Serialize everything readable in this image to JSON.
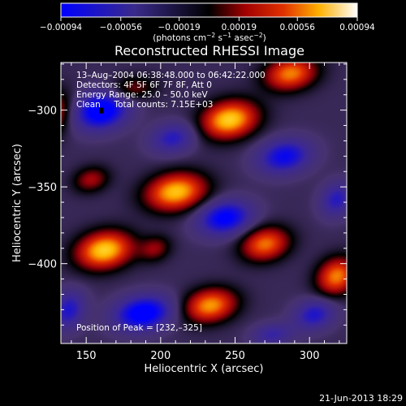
{
  "chart_data": {
    "type": "heatmap",
    "title": "Reconstructed RHESSI Image",
    "xlabel": "Heliocentric X (arcsec)",
    "ylabel": "Heliocentric Y (arcsec)",
    "xlim": [
      133,
      325
    ],
    "ylim": [
      -452,
      -269
    ],
    "x_ticks": [
      150,
      200,
      250,
      300
    ],
    "x_tick_labels": [
      "150",
      "200",
      "250",
      "300"
    ],
    "y_ticks": [
      -300,
      -350,
      -400
    ],
    "y_tick_labels": [
      "−300",
      "−350",
      "−400"
    ],
    "colorbar": {
      "range": [
        -0.00094,
        0.00094
      ],
      "ticks": [
        -0.00094,
        -0.00056,
        -0.00019,
        0.00019,
        0.00056,
        0.00094
      ],
      "tick_labels": [
        "−0.00094",
        "−0.00056",
        "−0.00019",
        "0.00019",
        "0.00056",
        "0.00094"
      ],
      "units_parts": [
        "(photons cm",
        "−2",
        " s",
        "−1",
        " asec",
        "−2",
        ")"
      ]
    },
    "annotations": [
      "13–Aug–2004 06:38:48.000 to 06:42:22.000",
      "Detectors: 4F 5F 6F 7F 8F, Att 0",
      "Energy Range: 25.0 – 50.0 keV",
      "Clean     Total counts: 7.15E+03"
    ],
    "peak_label": "Position of Peak = [232,–325]",
    "peak": {
      "x": 232,
      "y": -325
    },
    "colors": {
      "min": "#0000ff",
      "low": "#3a2a8a",
      "neutral": "#000000",
      "mid_high": "#d02000",
      "high": "#ffd700",
      "max": "#ffffff"
    },
    "blobs": [
      {
        "x": 246,
        "y": -306,
        "amp": 0.00094,
        "sx": 14,
        "sy": 10
      },
      {
        "x": 210,
        "y": -353,
        "amp": 0.0009,
        "sx": 15,
        "sy": 10
      },
      {
        "x": 162,
        "y": -391,
        "amp": 0.00094,
        "sx": 14,
        "sy": 10
      },
      {
        "x": 270,
        "y": -387,
        "amp": 0.00072,
        "sx": 12,
        "sy": 9
      },
      {
        "x": 233,
        "y": -427,
        "amp": 0.0008,
        "sx": 13,
        "sy": 9
      },
      {
        "x": 318,
        "y": -408,
        "amp": 0.00075,
        "sx": 10,
        "sy": 10
      },
      {
        "x": 287,
        "y": -276,
        "amp": 0.00075,
        "sx": 13,
        "sy": 9
      },
      {
        "x": 128,
        "y": -302,
        "amp": 0.0005,
        "sx": 9,
        "sy": 12
      },
      {
        "x": 153,
        "y": -345,
        "amp": 0.0004,
        "sx": 9,
        "sy": 7
      },
      {
        "x": 196,
        "y": -390,
        "amp": 0.00035,
        "sx": 8,
        "sy": 7
      },
      {
        "x": 180,
        "y": -286,
        "amp": 0.00035,
        "sx": 12,
        "sy": 7
      },
      {
        "x": 160,
        "y": -300,
        "amp": -0.00094,
        "sx": 13,
        "sy": 10
      },
      {
        "x": 283,
        "y": -330,
        "amp": -0.0007,
        "sx": 13,
        "sy": 9
      },
      {
        "x": 243,
        "y": -370,
        "amp": -0.0008,
        "sx": 13,
        "sy": 9
      },
      {
        "x": 188,
        "y": -432,
        "amp": -0.0009,
        "sx": 14,
        "sy": 9
      },
      {
        "x": 208,
        "y": -318,
        "amp": -0.0005,
        "sx": 11,
        "sy": 8
      },
      {
        "x": 303,
        "y": -433,
        "amp": -0.00055,
        "sx": 10,
        "sy": 8
      },
      {
        "x": 138,
        "y": -430,
        "amp": -0.00055,
        "sx": 8,
        "sy": 10
      },
      {
        "x": 318,
        "y": -358,
        "amp": -0.0005,
        "sx": 8,
        "sy": 9
      },
      {
        "x": 275,
        "y": -446,
        "amp": -0.0004,
        "sx": 10,
        "sy": 6
      }
    ]
  },
  "footer": {
    "timestamp": "21-Jun-2013 18:29"
  }
}
